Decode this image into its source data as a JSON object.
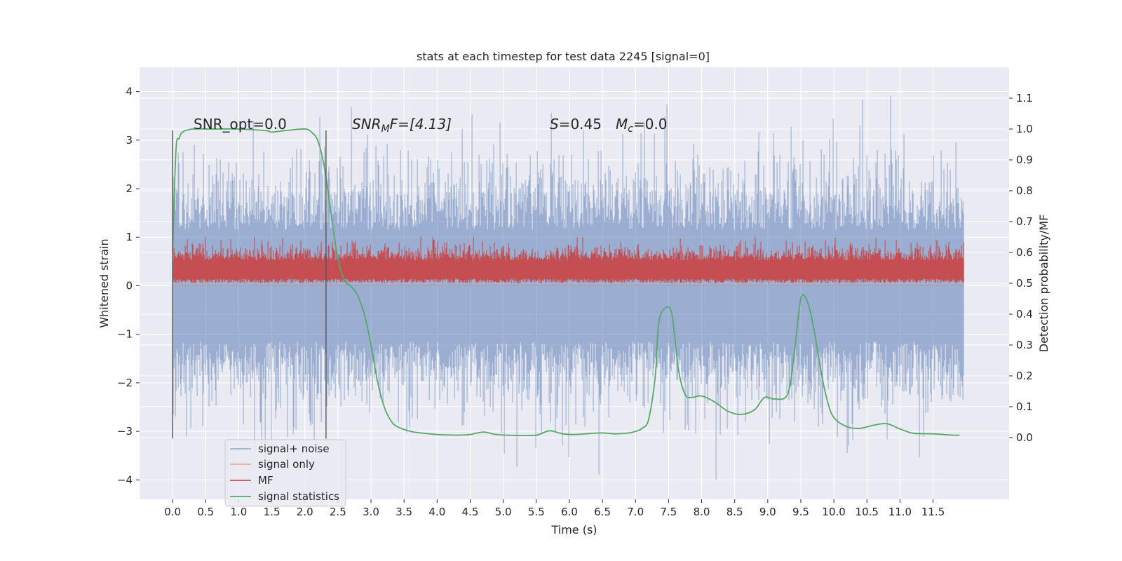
{
  "chart_data": {
    "type": "line",
    "title": "stats at each timestep for test data 2245 [signal=0]",
    "xlabel": "Time (s)",
    "ylabel": "Whitened strain",
    "y2label": "Detection probability/MF",
    "xlim": [
      -0.5,
      12.65
    ],
    "ylim": [
      -4.4,
      4.5
    ],
    "y2lim": [
      -0.2,
      1.2
    ],
    "x_ticks": [
      0.0,
      0.5,
      1.0,
      1.5,
      2.0,
      2.5,
      3.0,
      3.5,
      4.0,
      4.5,
      5.0,
      5.5,
      6.0,
      6.5,
      7.0,
      7.5,
      8.0,
      8.5,
      9.0,
      9.5,
      10.0,
      10.5,
      11.0,
      11.5
    ],
    "x_tick_labels": [
      "0.0",
      "0.5",
      "1.0",
      "1.5",
      "2.0",
      "2.5",
      "3.0",
      "3.5",
      "4.0",
      "4.5",
      "5.0",
      "5.5",
      "6.0",
      "6.5",
      "7.0",
      "7.5",
      "8.0",
      "8.5",
      "9.0",
      "9.5",
      "10.0",
      "10.5",
      "11.0",
      "11.5"
    ],
    "y_ticks": [
      4,
      3,
      2,
      1,
      0,
      -1,
      -2,
      -3,
      -4
    ],
    "y_tick_labels": [
      "4",
      "3",
      "2",
      "1",
      "0",
      "−1",
      "−2",
      "−3",
      "−4"
    ],
    "y2_ticks": [
      1.1,
      1.0,
      0.9,
      0.8,
      0.7,
      0.6,
      0.5,
      0.4,
      0.3,
      0.2,
      0.1,
      0.0
    ],
    "y2_tick_labels": [
      "1.1",
      "1.0",
      "0.9",
      "0.8",
      "0.7",
      "0.6",
      "0.5",
      "0.4",
      "0.3",
      "0.2",
      "0.1",
      "0.0"
    ],
    "grid": true,
    "legend_position": "lower-left",
    "annotations": {
      "snr_opt": "SNR_opt=0.0",
      "snr_mf_sym": "SNR",
      "snr_mf_sub": "M",
      "snr_mf_rest": "F=[4.13]",
      "s_sym": "S",
      "s_rest": "=0.45",
      "mc_sym": "M",
      "mc_sub": "c",
      "mc_rest": "=0.0"
    },
    "vertical_markers": [
      {
        "x": 0.0,
        "ymin": -3.15,
        "ymax": 3.2
      },
      {
        "x": 2.32,
        "ymin": -3.15,
        "ymax": 3.2
      }
    ],
    "series": [
      {
        "name": "signal+ noise",
        "color": "#4c72b0",
        "axis": "left",
        "x_range": [
          0.0,
          11.97
        ],
        "typical_range": [
          -1.9,
          1.9
        ],
        "extremes": [
          -4.0,
          4.1
        ]
      },
      {
        "name": "signal only",
        "color": "#dd8452",
        "axis": "left",
        "x": [
          0.0,
          11.97
        ],
        "y": [
          0.0,
          0.0
        ]
      },
      {
        "name": "MF",
        "color": "#c44e52",
        "axis": "right",
        "x_range": [
          0.0,
          11.97
        ],
        "typical_range": [
          0.5,
          0.62
        ],
        "extremes": [
          0.49,
          0.65
        ]
      },
      {
        "name": "signal statistics",
        "color": "#55a868",
        "axis": "right",
        "x": [
          0.0,
          0.05,
          0.1,
          0.15,
          0.3,
          0.6,
          1.0,
          1.4,
          1.5,
          1.7,
          2.0,
          2.1,
          2.2,
          2.3,
          2.4,
          2.5,
          2.6,
          2.7,
          2.8,
          2.9,
          3.0,
          3.1,
          3.2,
          3.3,
          3.4,
          3.6,
          3.8,
          4.0,
          4.3,
          4.5,
          4.7,
          4.9,
          5.2,
          5.5,
          5.7,
          5.9,
          6.1,
          6.3,
          6.5,
          6.7,
          6.9,
          7.0,
          7.1,
          7.2,
          7.3,
          7.35,
          7.45,
          7.55,
          7.65,
          7.75,
          7.85,
          8.0,
          8.2,
          8.4,
          8.6,
          8.8,
          8.95,
          9.1,
          9.3,
          9.4,
          9.5,
          9.6,
          9.7,
          9.8,
          9.9,
          10.0,
          10.2,
          10.4,
          10.6,
          10.8,
          11.0,
          11.2,
          11.5,
          11.8,
          11.9
        ],
        "y": [
          0.6,
          0.93,
          0.97,
          0.99,
          1.0,
          1.0,
          1.0,
          0.995,
          0.99,
          0.995,
          1.0,
          0.99,
          0.96,
          0.87,
          0.72,
          0.58,
          0.51,
          0.49,
          0.46,
          0.4,
          0.3,
          0.18,
          0.1,
          0.055,
          0.035,
          0.02,
          0.014,
          0.01,
          0.008,
          0.01,
          0.018,
          0.01,
          0.007,
          0.008,
          0.022,
          0.012,
          0.01,
          0.013,
          0.015,
          0.012,
          0.015,
          0.02,
          0.03,
          0.06,
          0.2,
          0.37,
          0.42,
          0.4,
          0.22,
          0.14,
          0.13,
          0.135,
          0.115,
          0.085,
          0.075,
          0.09,
          0.13,
          0.125,
          0.14,
          0.27,
          0.45,
          0.44,
          0.35,
          0.22,
          0.12,
          0.065,
          0.035,
          0.03,
          0.04,
          0.045,
          0.028,
          0.014,
          0.012,
          0.008,
          0.008
        ]
      }
    ]
  }
}
